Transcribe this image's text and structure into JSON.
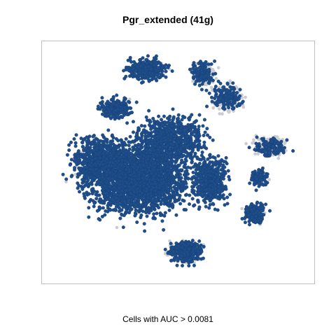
{
  "chart_data": {
    "type": "scatter",
    "title": "Pgr_extended (41g)",
    "xlabel": "",
    "ylabel": "",
    "caption": "Cells with AUC > 0.0081",
    "grid": false,
    "axes_ticks": false,
    "colors": {
      "above_threshold": "#1f4e8c",
      "above_threshold_edge": "#173d6e",
      "below_threshold": "#c9ccd2",
      "frame": "#bfbfbf"
    },
    "series": [
      {
        "name": "Cells with AUC > 0.0081",
        "color": "#1f4e8c"
      },
      {
        "name": "",
        "color": "#c9ccd2"
      }
    ]
  }
}
